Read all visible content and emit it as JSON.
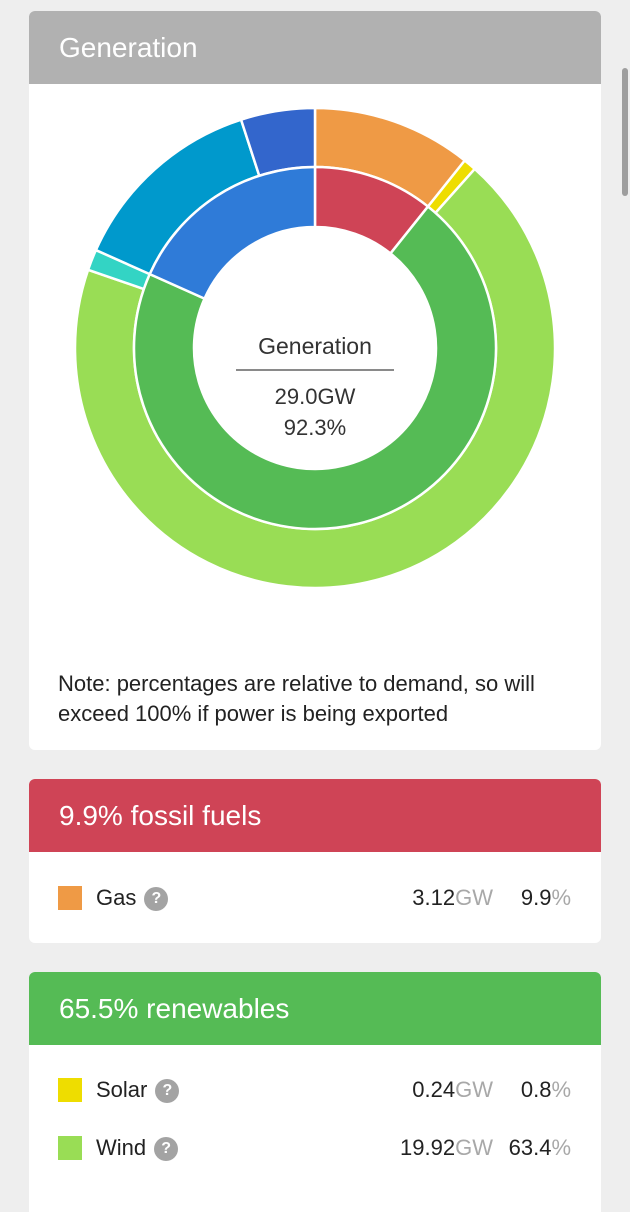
{
  "generation": {
    "title": "Generation",
    "center_title": "Generation",
    "center_gw": "29.0GW",
    "center_pct": "92.3%",
    "note": "Note: percentages are relative to demand, so will exceed 100% if power is being exported"
  },
  "chart_data": {
    "type": "pie",
    "title": "",
    "inner_ring": [
      {
        "category": "fossil fuels",
        "value": 9.9,
        "color": "#cf4456"
      },
      {
        "category": "renewables",
        "value": 65.5,
        "color": "#55bb55"
      },
      {
        "category": "other",
        "value": 16.9,
        "color": "#2f7bd8"
      }
    ],
    "outer_ring": [
      {
        "source": "Gas",
        "value": 9.9,
        "color": "#ef9a45"
      },
      {
        "source": "Solar",
        "value": 0.8,
        "color": "#eedd00"
      },
      {
        "source": "Wind",
        "value": 63.4,
        "color": "#99dd55"
      },
      {
        "source": "",
        "value": 1.3,
        "color": "#33d4c4"
      },
      {
        "source": "",
        "value": 12.3,
        "color": "#0099cc"
      },
      {
        "source": "",
        "value": 4.6,
        "color": "#3366cc"
      }
    ],
    "total_pct": 92.3
  },
  "fossil": {
    "header": "9.9% fossil fuels",
    "items": [
      {
        "label": "Gas",
        "gw": "3.12",
        "unit": "GW",
        "pct": "9.9",
        "pct_unit": "%",
        "color": "#ef9a45"
      }
    ]
  },
  "renewables": {
    "header": "65.5% renewables",
    "items": [
      {
        "label": "Solar",
        "gw": "0.24",
        "unit": "GW",
        "pct": "0.8",
        "pct_unit": "%",
        "color": "#eedd00"
      },
      {
        "label": "Wind",
        "gw": "19.92",
        "unit": "GW",
        "pct": "63.4",
        "pct_unit": "%",
        "color": "#99dd55"
      }
    ]
  },
  "help_glyph": "?"
}
